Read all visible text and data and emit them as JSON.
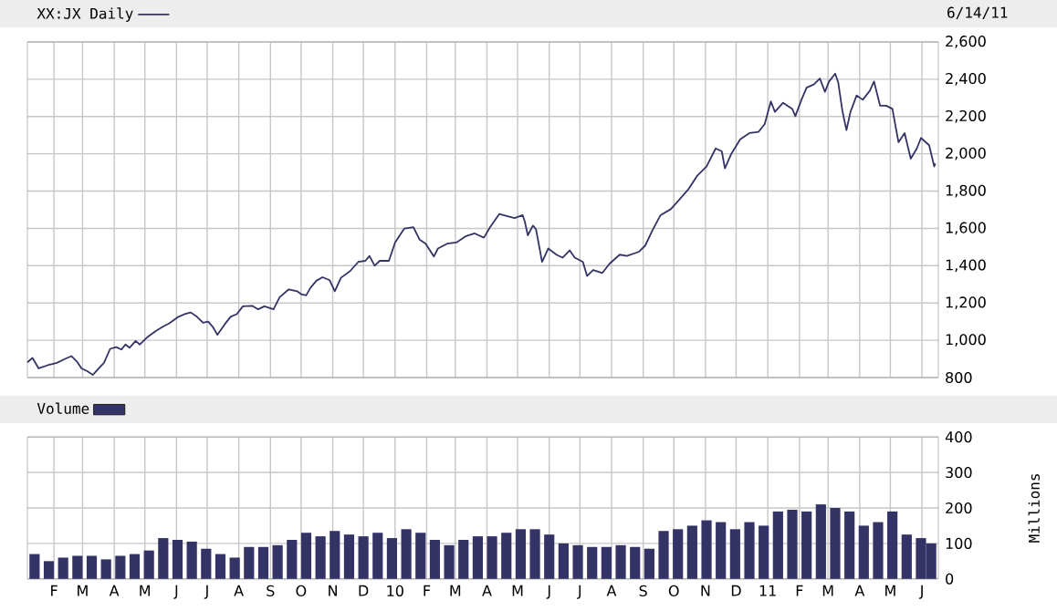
{
  "chart_data": [
    {
      "type": "line",
      "legend": "top left",
      "grid": true,
      "tick_labels": "y",
      "annotations": [
        "6/14/11"
      ],
      "xlim": [
        "2009-01-06",
        "2011-06-17"
      ],
      "ylim": [
        800,
        2600
      ],
      "yticks": [
        800,
        {
          "value": 1000,
          "label": "1,000"
        },
        {
          "value": 1200,
          "label": "1,200"
        },
        {
          "value": 1400,
          "label": "1,400"
        },
        {
          "value": 1600,
          "label": "1,600"
        },
        {
          "value": 1800,
          "label": "1,800"
        },
        {
          "value": 2000,
          "label": "2,000"
        },
        {
          "value": 2200,
          "label": "2,200"
        },
        {
          "value": 2400,
          "label": "2,400"
        },
        {
          "value": 2600,
          "label": "2,600"
        }
      ],
      "xticks": [
        {
          "value": "2009-02-01",
          "label": null
        },
        {
          "value": "2009-03-01",
          "label": null
        },
        {
          "value": "2009-04-01",
          "label": null
        },
        {
          "value": "2009-05-01",
          "label": null
        },
        {
          "value": "2009-06-01",
          "label": null
        },
        {
          "value": "2009-07-01",
          "label": null
        },
        {
          "value": "2009-08-01",
          "label": null
        },
        {
          "value": "2009-09-01",
          "label": null
        },
        {
          "value": "2009-10-01",
          "label": null
        },
        {
          "value": "2009-11-01",
          "label": null
        },
        {
          "value": "2009-12-01",
          "label": null
        },
        {
          "value": "2010-01-01",
          "label": null
        },
        {
          "value": "2010-02-01",
          "label": null
        },
        {
          "value": "2010-03-01",
          "label": null
        },
        {
          "value": "2010-04-01",
          "label": null
        },
        {
          "value": "2010-05-01",
          "label": null
        },
        {
          "value": "2010-06-01",
          "label": null
        },
        {
          "value": "2010-07-01",
          "label": null
        },
        {
          "value": "2010-08-01",
          "label": null
        },
        {
          "value": "2010-09-01",
          "label": null
        },
        {
          "value": "2010-10-01",
          "label": null
        },
        {
          "value": "2010-11-01",
          "label": null
        },
        {
          "value": "2010-12-01",
          "label": null
        },
        {
          "value": "2011-01-01",
          "label": null
        },
        {
          "value": "2011-02-01",
          "label": null
        },
        {
          "value": "2011-03-01",
          "label": null
        },
        {
          "value": "2011-04-01",
          "label": null
        },
        {
          "value": "2011-05-01",
          "label": null
        },
        {
          "value": "2011-06-01",
          "label": null
        }
      ],
      "series": [
        {
          "name": "XX:JX Daily",
          "color": "#333366",
          "x": [
            "2009-01-06",
            "2009-01-11",
            "2009-01-17",
            "2009-01-26",
            "2009-02-04",
            "2009-02-10",
            "2009-02-18",
            "2009-02-24",
            "2009-02-28",
            "2009-03-06",
            "2009-03-11",
            "2009-03-18",
            "2009-03-22",
            "2009-03-28",
            "2009-04-03",
            "2009-04-08",
            "2009-04-12",
            "2009-04-16",
            "2009-04-22",
            "2009-04-26",
            "2009-05-04",
            "2009-05-12",
            "2009-05-19",
            "2009-05-25",
            "2009-06-02",
            "2009-06-09",
            "2009-06-15",
            "2009-06-21",
            "2009-06-27",
            "2009-07-02",
            "2009-07-07",
            "2009-07-11",
            "2009-07-18",
            "2009-07-24",
            "2009-07-30",
            "2009-08-05",
            "2009-08-14",
            "2009-08-20",
            "2009-08-26",
            "2009-09-04",
            "2009-09-10",
            "2009-09-19",
            "2009-09-27",
            "2009-10-01",
            "2009-10-06",
            "2009-10-10",
            "2009-10-16",
            "2009-10-22",
            "2009-10-29",
            "2009-11-03",
            "2009-11-09",
            "2009-11-18",
            "2009-11-26",
            "2009-12-03",
            "2009-12-07",
            "2009-12-12",
            "2009-12-17",
            "2009-12-26",
            "2010-01-01",
            "2010-01-10",
            "2010-01-19",
            "2010-01-25",
            "2010-01-31",
            "2010-02-08",
            "2010-02-12",
            "2010-02-21",
            "2010-03-02",
            "2010-03-11",
            "2010-03-20",
            "2010-03-29",
            "2010-04-04",
            "2010-04-13",
            "2010-04-22",
            "2010-04-28",
            "2010-05-06",
            "2010-05-08",
            "2010-05-11",
            "2010-05-16",
            "2010-05-19",
            "2010-05-22",
            "2010-05-25",
            "2010-05-31",
            "2010-06-08",
            "2010-06-14",
            "2010-06-21",
            "2010-06-26",
            "2010-07-04",
            "2010-07-08",
            "2010-07-14",
            "2010-07-23",
            "2010-07-30",
            "2010-08-09",
            "2010-08-16",
            "2010-08-28",
            "2010-09-03",
            "2010-09-10",
            "2010-09-18",
            "2010-09-28",
            "2010-10-06",
            "2010-10-15",
            "2010-10-24",
            "2010-11-02",
            "2010-11-11",
            "2010-11-17",
            "2010-11-20",
            "2010-11-26",
            "2010-12-05",
            "2010-12-14",
            "2010-12-23",
            "2010-12-29",
            "2011-01-04",
            "2011-01-08",
            "2011-01-16",
            "2011-01-25",
            "2011-01-28",
            "2011-02-03",
            "2011-02-08",
            "2011-02-15",
            "2011-02-21",
            "2011-02-26",
            "2011-03-02",
            "2011-03-08",
            "2011-03-11",
            "2011-03-15",
            "2011-03-19",
            "2011-03-23",
            "2011-03-29",
            "2011-04-04",
            "2011-04-11",
            "2011-04-15",
            "2011-04-21",
            "2011-04-27",
            "2011-05-03",
            "2011-05-09",
            "2011-05-15",
            "2011-05-21",
            "2011-05-27",
            "2011-05-31",
            "2011-06-08",
            "2011-06-13",
            "2011-06-14"
          ],
          "values": [
            882,
            905,
            849,
            866,
            879,
            895,
            915,
            882,
            849,
            833,
            814,
            856,
            879,
            954,
            963,
            950,
            977,
            960,
            996,
            977,
            1019,
            1051,
            1074,
            1091,
            1123,
            1140,
            1149,
            1126,
            1094,
            1100,
            1068,
            1029,
            1084,
            1126,
            1140,
            1182,
            1185,
            1166,
            1182,
            1166,
            1231,
            1273,
            1263,
            1247,
            1241,
            1280,
            1319,
            1338,
            1322,
            1263,
            1335,
            1371,
            1420,
            1426,
            1452,
            1400,
            1426,
            1426,
            1524,
            1599,
            1606,
            1540,
            1518,
            1449,
            1492,
            1518,
            1524,
            1557,
            1573,
            1550,
            1606,
            1677,
            1664,
            1655,
            1671,
            1638,
            1563,
            1615,
            1596,
            1508,
            1420,
            1492,
            1459,
            1443,
            1482,
            1443,
            1420,
            1345,
            1377,
            1361,
            1410,
            1459,
            1452,
            1475,
            1508,
            1589,
            1671,
            1703,
            1752,
            1808,
            1883,
            1932,
            2029,
            2013,
            1922,
            1997,
            2078,
            2111,
            2118,
            2160,
            2281,
            2225,
            2274,
            2241,
            2202,
            2290,
            2355,
            2372,
            2404,
            2333,
            2388,
            2430,
            2382,
            2232,
            2127,
            2225,
            2313,
            2290,
            2339,
            2388,
            2258,
            2258,
            2241,
            2062,
            2111,
            1974,
            2029,
            2085,
            2046,
            1932,
            1948
          ]
        }
      ]
    },
    {
      "type": "bar",
      "legend": "top left",
      "grid": true,
      "ylabel": "Millions",
      "xlim": [
        "2009-01-06",
        "2011-06-17"
      ],
      "ylim": [
        0,
        400
      ],
      "yticks": [
        0,
        100,
        200,
        300,
        400
      ],
      "xticks": [
        {
          "value": "2009-02-01",
          "label": "F"
        },
        {
          "value": "2009-03-01",
          "label": "M"
        },
        {
          "value": "2009-04-01",
          "label": "A"
        },
        {
          "value": "2009-05-01",
          "label": "M"
        },
        {
          "value": "2009-06-01",
          "label": "J"
        },
        {
          "value": "2009-07-01",
          "label": "J"
        },
        {
          "value": "2009-08-01",
          "label": "A"
        },
        {
          "value": "2009-09-01",
          "label": "S"
        },
        {
          "value": "2009-10-01",
          "label": "O"
        },
        {
          "value": "2009-11-01",
          "label": "N"
        },
        {
          "value": "2009-12-01",
          "label": "D"
        },
        {
          "value": "2010-01-01",
          "label": "10"
        },
        {
          "value": "2010-02-01",
          "label": "F"
        },
        {
          "value": "2010-03-01",
          "label": "M"
        },
        {
          "value": "2010-04-01",
          "label": "A"
        },
        {
          "value": "2010-05-01",
          "label": "M"
        },
        {
          "value": "2010-06-01",
          "label": "J"
        },
        {
          "value": "2010-07-01",
          "label": "J"
        },
        {
          "value": "2010-08-01",
          "label": "A"
        },
        {
          "value": "2010-09-01",
          "label": "S"
        },
        {
          "value": "2010-10-01",
          "label": "O"
        },
        {
          "value": "2010-11-01",
          "label": "N"
        },
        {
          "value": "2010-12-01",
          "label": "D"
        },
        {
          "value": "2011-01-01",
          "label": "11"
        },
        {
          "value": "2011-02-01",
          "label": "F"
        },
        {
          "value": "2011-03-01",
          "label": "M"
        },
        {
          "value": "2011-04-01",
          "label": "A"
        },
        {
          "value": "2011-05-01",
          "label": "M"
        },
        {
          "value": "2011-06-01",
          "label": "J"
        }
      ],
      "series": [
        {
          "name": "Volume",
          "color": "#333366",
          "x": [
            "2009-01-13",
            "2009-01-27",
            "2009-02-10",
            "2009-02-24",
            "2009-03-10",
            "2009-03-24",
            "2009-04-07",
            "2009-04-21",
            "2009-05-05",
            "2009-05-19",
            "2009-06-02",
            "2009-06-16",
            "2009-06-30",
            "2009-07-14",
            "2009-07-28",
            "2009-08-11",
            "2009-08-25",
            "2009-09-08",
            "2009-09-22",
            "2009-10-06",
            "2009-10-20",
            "2009-11-03",
            "2009-11-17",
            "2009-12-01",
            "2009-12-15",
            "2009-12-29",
            "2010-01-12",
            "2010-01-26",
            "2010-02-09",
            "2010-02-23",
            "2010-03-09",
            "2010-03-23",
            "2010-04-06",
            "2010-04-20",
            "2010-05-04",
            "2010-05-18",
            "2010-06-01",
            "2010-06-15",
            "2010-06-29",
            "2010-07-13",
            "2010-07-27",
            "2010-08-10",
            "2010-08-24",
            "2010-09-07",
            "2010-09-21",
            "2010-10-05",
            "2010-10-19",
            "2010-11-02",
            "2010-11-16",
            "2010-11-30",
            "2010-12-14",
            "2010-12-28",
            "2011-01-11",
            "2011-01-25",
            "2011-02-08",
            "2011-02-22",
            "2011-03-08",
            "2011-03-22",
            "2011-04-05",
            "2011-04-19",
            "2011-05-03",
            "2011-05-17",
            "2011-05-31",
            "2011-06-10"
          ],
          "values": [
            70,
            50,
            60,
            65,
            65,
            55,
            65,
            70,
            80,
            115,
            110,
            105,
            85,
            70,
            60,
            90,
            90,
            95,
            110,
            130,
            120,
            135,
            125,
            120,
            130,
            115,
            140,
            130,
            110,
            95,
            110,
            120,
            120,
            130,
            140,
            140,
            125,
            100,
            95,
            90,
            90,
            95,
            90,
            85,
            135,
            140,
            150,
            165,
            160,
            140,
            160,
            150,
            190,
            195,
            190,
            210,
            200,
            190,
            150,
            160,
            190,
            125,
            115,
            100
          ]
        }
      ]
    }
  ]
}
